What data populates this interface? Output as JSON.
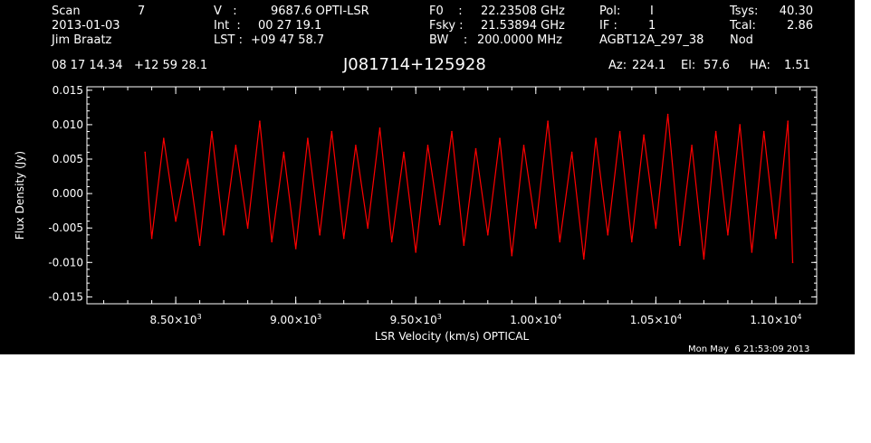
{
  "header": {
    "scan_label": "Scan",
    "scan_value": "7",
    "date": "2013-01-03",
    "observer": "Jim Braatz",
    "v_label": "V   :",
    "v_value": "9687.6 OPTI-LSR",
    "int_label": "Int  :",
    "int_value": "00 27 19.1",
    "lst_label": "LST :",
    "lst_value": "+09 47 58.7",
    "f0_label": "F0    :",
    "f0_value": "22.23508 GHz",
    "fsky_label": "Fsky :",
    "fsky_value": "21.53894 GHz",
    "bw_label": "BW    :",
    "bw_value": "200.0000 MHz",
    "pol_label": "Pol:",
    "pol_value": "I",
    "if_label": "IF :",
    "if_value": "1",
    "project": "AGBT12A_297_38",
    "tsys_label": "Tsys:",
    "tsys_value": "40.30",
    "tcal_label": "Tcal:",
    "tcal_value": "2.86",
    "mode": "Nod",
    "coords": "08 17 14.34   +12 59 28.1",
    "source": "J081714+125928",
    "az_label": "Az:",
    "az_value": "224.1",
    "el_label": "El:",
    "el_value": "57.6",
    "ha_label": "HA:",
    "ha_value": "1.51"
  },
  "timestamp": "Mon May  6 21:53:09 2013",
  "chart_data": {
    "type": "line",
    "title": "J081714+125928",
    "xlabel": "LSR Velocity (km/s) OPTICAL",
    "ylabel": "Flux Density (Jy)",
    "xlim": [
      8130,
      11170
    ],
    "ylim": [
      -0.016,
      0.0155
    ],
    "x_ticks": [
      8500,
      9000,
      9500,
      10000,
      10500,
      11000
    ],
    "x_tick_labels": [
      {
        "m": "8.50",
        "e": "3"
      },
      {
        "m": "9.00",
        "e": "3"
      },
      {
        "m": "9.50",
        "e": "3"
      },
      {
        "m": "1.00",
        "e": "4"
      },
      {
        "m": "1.05",
        "e": "4"
      },
      {
        "m": "1.10",
        "e": "4"
      }
    ],
    "y_ticks": [
      0.015,
      0.01,
      0.005,
      0.0,
      -0.005,
      -0.01,
      -0.015
    ],
    "y_tick_labels": [
      "0.015",
      "0.010",
      "0.005",
      "0.000",
      "-0.005",
      "-0.010",
      "-0.015"
    ],
    "series": [
      {
        "color": "#ff0000",
        "x": [
          8372,
          8400,
          8450,
          8500,
          8550,
          8600,
          8650,
          8700,
          8750,
          8800,
          8850,
          8900,
          8950,
          9000,
          9050,
          9100,
          9150,
          9200,
          9250,
          9300,
          9350,
          9400,
          9450,
          9500,
          9550,
          9600,
          9650,
          9700,
          9750,
          9800,
          9850,
          9900,
          9950,
          10000,
          10050,
          10100,
          10150,
          10200,
          10250,
          10300,
          10350,
          10400,
          10450,
          10500,
          10550,
          10600,
          10650,
          10700,
          10750,
          10800,
          10850,
          10900,
          10950,
          11000,
          11050,
          11070
        ],
        "y": [
          0.006,
          -0.0065,
          0.008,
          -0.004,
          0.005,
          -0.0075,
          0.009,
          -0.006,
          0.007,
          -0.005,
          0.0105,
          -0.007,
          0.006,
          -0.008,
          0.008,
          -0.006,
          0.009,
          -0.0065,
          0.007,
          -0.005,
          0.0095,
          -0.007,
          0.006,
          -0.0085,
          0.007,
          -0.0045,
          0.009,
          -0.0075,
          0.0065,
          -0.006,
          0.008,
          -0.009,
          0.007,
          -0.005,
          0.0105,
          -0.007,
          0.006,
          -0.0095,
          0.008,
          -0.006,
          0.009,
          -0.007,
          0.0085,
          -0.005,
          0.0115,
          -0.0075,
          0.007,
          -0.0095,
          0.009,
          -0.006,
          0.01,
          -0.0085,
          0.009,
          -0.0065,
          0.0105,
          -0.01
        ]
      }
    ],
    "grid": false,
    "legend": "none"
  }
}
